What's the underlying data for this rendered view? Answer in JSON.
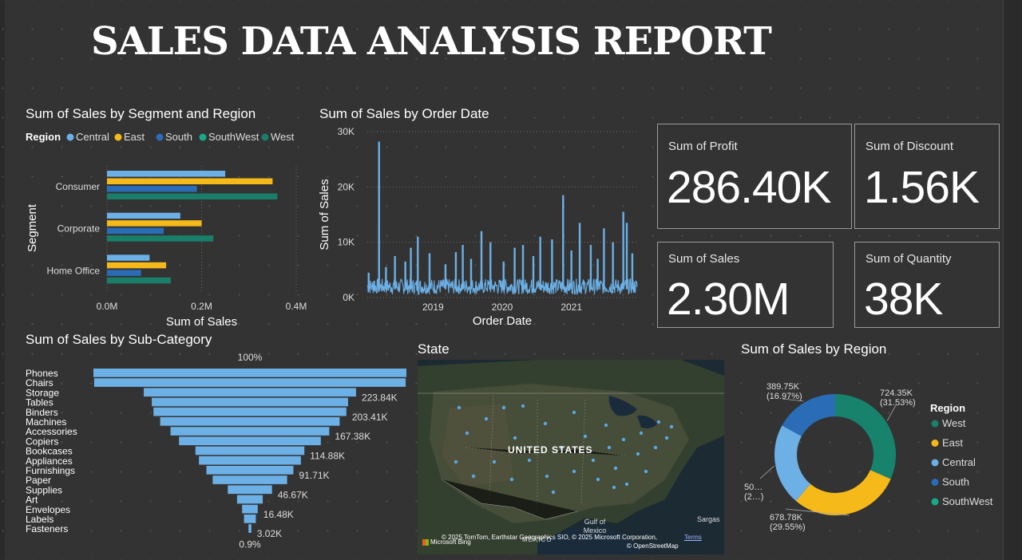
{
  "report": {
    "title": "SALES DATA ANALYSIS REPORT"
  },
  "cards": {
    "profit": {
      "label": "Sum of Profit",
      "value": "286.40K"
    },
    "discount": {
      "label": "Sum of Discount",
      "value": "1.56K"
    },
    "sales": {
      "label": "Sum of Sales",
      "value": "2.30M"
    },
    "quantity": {
      "label": "Sum of Quantity",
      "value": "38K"
    }
  },
  "map": {
    "title": "State",
    "country_label": "UNITED STATES",
    "credit": "© 2025 TomTom, Earthstar Geographics SIO, © 2025 Microsoft Corporation,",
    "credit2": "© OpenStreetMap",
    "terms": "Terms",
    "bing": "Microsoft Bing",
    "gulf_label": "Gulf of Mexico",
    "mexico_label": "MÉXICO",
    "sargasso_label": "Sargas"
  },
  "chart_data": [
    {
      "type": "bar",
      "orientation": "horizontal",
      "title": "Sum of Sales by Segment and Region",
      "xlabel": "Sum of Sales",
      "ylabel": "Segment",
      "legend_title": "Region",
      "legend_position": "top-left",
      "categories": [
        "Consumer",
        "Corporate",
        "Home Office"
      ],
      "series": [
        {
          "name": "Central",
          "color": "#6cb0e6",
          "values": [
            0.25,
            0.155,
            0.09
          ]
        },
        {
          "name": "East",
          "color": "#f5b919",
          "values": [
            0.35,
            0.2,
            0.125
          ]
        },
        {
          "name": "South",
          "color": "#2b6cb6",
          "values": [
            0.19,
            0.12,
            0.072
          ]
        },
        {
          "name": "SouthWest",
          "color": "#18a98b",
          "values": [
            0,
            0,
            0
          ]
        },
        {
          "name": "West",
          "color": "#197f6a",
          "values": [
            0.36,
            0.225,
            0.135
          ]
        }
      ],
      "xlim": [
        0,
        0.4
      ],
      "xticks": [
        0,
        0.2,
        0.4
      ],
      "xtick_labels": [
        "0.0M",
        "0.2M",
        "0.4M"
      ],
      "grid": true
    },
    {
      "type": "line",
      "title": "Sum of Sales by Order Date",
      "xlabel": "Order Date",
      "ylabel": "Sum of Sales",
      "color": "#6cb0e6",
      "x_range": [
        2018.05,
        2021.95
      ],
      "xticks": [
        2019,
        2020,
        2021
      ],
      "xtick_labels": [
        "2019",
        "2020",
        "2021"
      ],
      "ylim": [
        0,
        30000
      ],
      "yticks": [
        0,
        10000,
        20000,
        30000
      ],
      "ytick_labels": [
        "0K",
        "10K",
        "20K",
        "30K"
      ],
      "spikes": [
        {
          "x": 2018.07,
          "y": 4500
        },
        {
          "x": 2018.15,
          "y": 3000
        },
        {
          "x": 2018.22,
          "y": 28200
        },
        {
          "x": 2018.32,
          "y": 5500
        },
        {
          "x": 2018.45,
          "y": 7500
        },
        {
          "x": 2018.6,
          "y": 6500
        },
        {
          "x": 2018.68,
          "y": 9000
        },
        {
          "x": 2018.78,
          "y": 11000
        },
        {
          "x": 2018.95,
          "y": 8000
        },
        {
          "x": 2019.18,
          "y": 6000
        },
        {
          "x": 2019.33,
          "y": 8200
        },
        {
          "x": 2019.43,
          "y": 9500
        },
        {
          "x": 2019.55,
          "y": 7000
        },
        {
          "x": 2019.7,
          "y": 12000
        },
        {
          "x": 2019.83,
          "y": 10000
        },
        {
          "x": 2020.02,
          "y": 6500
        },
        {
          "x": 2020.18,
          "y": 9000
        },
        {
          "x": 2020.3,
          "y": 9500
        },
        {
          "x": 2020.45,
          "y": 7500
        },
        {
          "x": 2020.55,
          "y": 11000
        },
        {
          "x": 2020.72,
          "y": 10500
        },
        {
          "x": 2020.88,
          "y": 18500
        },
        {
          "x": 2021.0,
          "y": 8500
        },
        {
          "x": 2021.12,
          "y": 13500
        },
        {
          "x": 2021.28,
          "y": 9500
        },
        {
          "x": 2021.38,
          "y": 7000
        },
        {
          "x": 2021.47,
          "y": 12500
        },
        {
          "x": 2021.6,
          "y": 10000
        },
        {
          "x": 2021.75,
          "y": 15500
        },
        {
          "x": 2021.8,
          "y": 13500
        },
        {
          "x": 2021.88,
          "y": 8000
        }
      ]
    },
    {
      "type": "bar",
      "orientation": "funnel",
      "title": "Sum of Sales by Sub-Category",
      "categories": [
        "Phones",
        "Chairs",
        "Storage",
        "Tables",
        "Binders",
        "Machines",
        "Accessories",
        "Copiers",
        "Bookcases",
        "Appliances",
        "Furnishings",
        "Paper",
        "Supplies",
        "Art",
        "Envelopes",
        "Labels",
        "Fasteners"
      ],
      "values": [
        330.0,
        328.45,
        223.84,
        206.97,
        203.41,
        189.24,
        167.38,
        149.53,
        114.88,
        107.53,
        91.71,
        78.48,
        46.67,
        27.12,
        16.48,
        12.49,
        3.02
      ],
      "unit": "K",
      "data_labels": [
        "",
        "",
        "223.84K",
        "",
        "203.41K",
        "",
        "167.38K",
        "",
        "114.88K",
        "",
        "91.71K",
        "",
        "46.67K",
        "",
        "16.48K",
        "",
        "3.02K"
      ],
      "top_label": "100%",
      "bottom_label": "0.9%",
      "color": "#6cb0e6"
    },
    {
      "type": "pie",
      "subtype": "donut",
      "title": "Sum of Sales by Region",
      "legend_title": "Region",
      "legend_position": "right",
      "slices": [
        {
          "name": "West",
          "value": 724.35,
          "color": "#18836c"
        },
        {
          "name": "East",
          "value": 678.78,
          "color": "#f5b919"
        },
        {
          "name": "Central",
          "value": 501.0,
          "color": "#6cb0e6"
        },
        {
          "name": "South",
          "value": 389.75,
          "color": "#2b6cb6"
        },
        {
          "name": "SouthWest",
          "value": 0,
          "color": "#18a98b"
        }
      ],
      "data_labels": [
        {
          "slice": "West",
          "line1": "724.35K",
          "line2": "(31.53%)"
        },
        {
          "slice": "East",
          "line1": "678.78K",
          "line2": "(29.55%)"
        },
        {
          "slice": "Central",
          "line1": "50…",
          "line2": "(2…)"
        },
        {
          "slice": "South",
          "line1": "389.75K",
          "line2": "(16.97%)"
        }
      ]
    }
  ]
}
